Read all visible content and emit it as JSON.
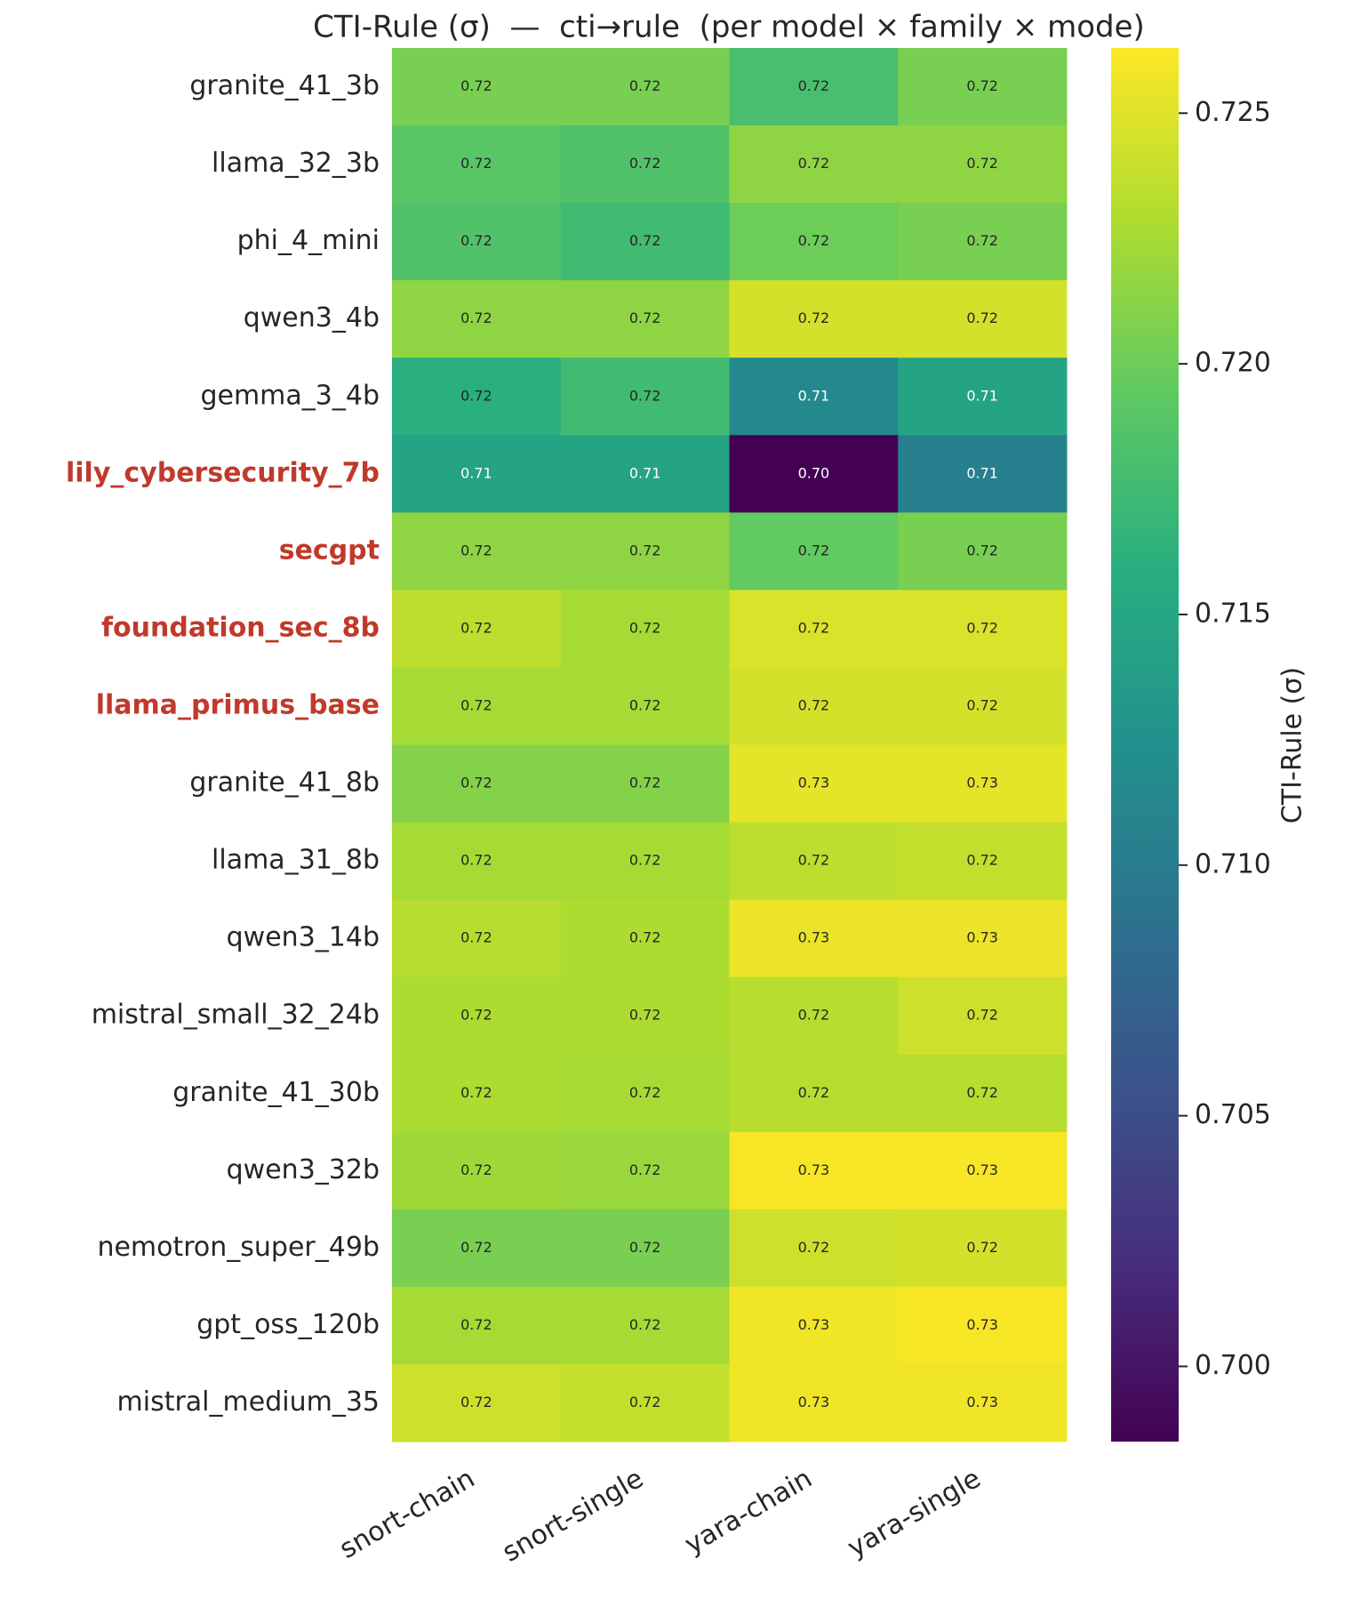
{
  "chart_data": {
    "type": "heatmap",
    "title": "CTI-Rule (σ)  —  cti→rule  (per model × family × mode)",
    "colorbar_label": "CTI-Rule (σ)",
    "colormap": "viridis",
    "categories": [
      "snort-chain",
      "snort-single",
      "yara-chain",
      "yara-single"
    ],
    "rows": [
      "granite_41_3b",
      "llama_32_3b",
      "phi_4_mini",
      "qwen3_4b",
      "gemma_3_4b",
      "lily_cybersecurity_7b",
      "secgpt",
      "foundation_sec_8b",
      "llama_primus_base",
      "granite_41_8b",
      "llama_31_8b",
      "qwen3_14b",
      "mistral_small_32_24b",
      "granite_41_30b",
      "qwen3_32b",
      "nemotron_super_49b",
      "gpt_oss_120b",
      "mistral_medium_35"
    ],
    "highlighted_rows": [
      false,
      false,
      false,
      false,
      false,
      true,
      true,
      true,
      true,
      false,
      false,
      false,
      false,
      false,
      false,
      false,
      false,
      false
    ],
    "highlight_color": "#c0392b",
    "values": [
      [
        0.7205,
        0.7205,
        0.718,
        0.7205
      ],
      [
        0.719,
        0.7185,
        0.7215,
        0.7215
      ],
      [
        0.7185,
        0.7175,
        0.72,
        0.7205
      ],
      [
        0.7215,
        0.7215,
        0.7245,
        0.7245
      ],
      [
        0.716,
        0.7175,
        0.7115,
        0.7145
      ],
      [
        0.7145,
        0.7145,
        0.6985,
        0.7105
      ],
      [
        0.7215,
        0.7215,
        0.7195,
        0.7205
      ],
      [
        0.7235,
        0.7225,
        0.7248,
        0.7248
      ],
      [
        0.7225,
        0.7225,
        0.7245,
        0.7245
      ],
      [
        0.721,
        0.721,
        0.7252,
        0.7252
      ],
      [
        0.7225,
        0.7225,
        0.7235,
        0.7238
      ],
      [
        0.7232,
        0.7228,
        0.7255,
        0.7255
      ],
      [
        0.7228,
        0.7228,
        0.7232,
        0.7242
      ],
      [
        0.7228,
        0.7225,
        0.7232,
        0.7232
      ],
      [
        0.7222,
        0.722,
        0.726,
        0.726
      ],
      [
        0.7205,
        0.7205,
        0.7242,
        0.7245
      ],
      [
        0.7225,
        0.7225,
        0.7258,
        0.726
      ],
      [
        0.7242,
        0.7238,
        0.7258,
        0.7258
      ]
    ],
    "value_labels": [
      [
        "0.72",
        "0.72",
        "0.72",
        "0.72"
      ],
      [
        "0.72",
        "0.72",
        "0.72",
        "0.72"
      ],
      [
        "0.72",
        "0.72",
        "0.72",
        "0.72"
      ],
      [
        "0.72",
        "0.72",
        "0.72",
        "0.72"
      ],
      [
        "0.72",
        "0.72",
        "0.71",
        "0.71"
      ],
      [
        "0.71",
        "0.71",
        "0.70",
        "0.71"
      ],
      [
        "0.72",
        "0.72",
        "0.72",
        "0.72"
      ],
      [
        "0.72",
        "0.72",
        "0.72",
        "0.72"
      ],
      [
        "0.72",
        "0.72",
        "0.72",
        "0.72"
      ],
      [
        "0.72",
        "0.72",
        "0.73",
        "0.73"
      ],
      [
        "0.72",
        "0.72",
        "0.72",
        "0.72"
      ],
      [
        "0.72",
        "0.72",
        "0.73",
        "0.73"
      ],
      [
        "0.72",
        "0.72",
        "0.72",
        "0.72"
      ],
      [
        "0.72",
        "0.72",
        "0.72",
        "0.72"
      ],
      [
        "0.72",
        "0.72",
        "0.73",
        "0.73"
      ],
      [
        "0.72",
        "0.72",
        "0.72",
        "0.72"
      ],
      [
        "0.72",
        "0.72",
        "0.73",
        "0.73"
      ],
      [
        "0.72",
        "0.72",
        "0.73",
        "0.73"
      ]
    ],
    "clim": [
      0.6985,
      0.7263
    ],
    "cticks": [
      {
        "value": 0.7,
        "label": "0.700"
      },
      0.705,
      {
        "value": 0.71,
        "label": "0.710"
      },
      0.715,
      {
        "value": 0.72,
        "label": "0.720"
      },
      0.725
    ]
  }
}
